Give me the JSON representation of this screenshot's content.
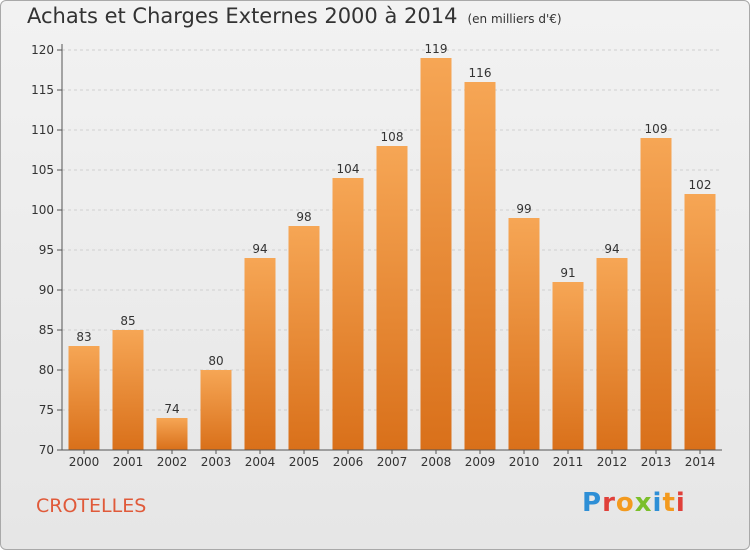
{
  "title": "Achats et Charges Externes 2000 à 2014",
  "unit": "(en milliers d'€)",
  "commune": "CROTELLES",
  "logo": "Proxiti",
  "colors": {
    "bar_top": "#f6a655",
    "bar_bottom": "#d9701a",
    "axis": "#555555",
    "grid": "#d0d0d0"
  },
  "chart_data": {
    "type": "bar",
    "categories": [
      "2000",
      "2001",
      "2002",
      "2003",
      "2004",
      "2005",
      "2006",
      "2007",
      "2008",
      "2009",
      "2010",
      "2011",
      "2012",
      "2013",
      "2014"
    ],
    "values": [
      83,
      85,
      74,
      80,
      94,
      98,
      104,
      108,
      119,
      116,
      99,
      91,
      94,
      109,
      102
    ],
    "ylim": [
      70,
      120
    ],
    "yticks": [
      70,
      75,
      80,
      85,
      90,
      95,
      100,
      105,
      110,
      115,
      120
    ],
    "grid": true,
    "data_labels": true
  }
}
